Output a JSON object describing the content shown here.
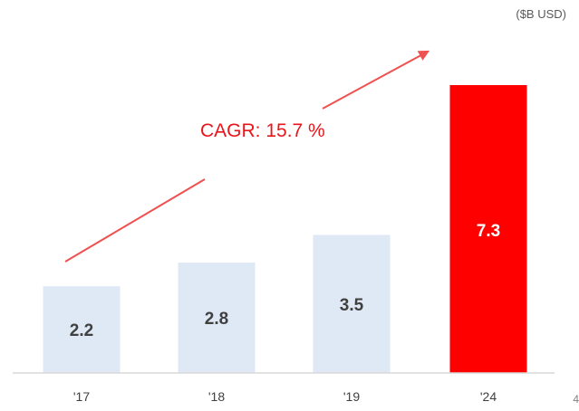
{
  "chart_data": {
    "type": "bar",
    "title": "",
    "unit_label": "($B USD)",
    "categories": [
      "'17",
      "'18",
      "'19",
      "'24"
    ],
    "values": [
      2.2,
      2.8,
      3.5,
      7.3
    ],
    "value_labels": [
      "2.2",
      "2.8",
      "3.5",
      "7.3"
    ],
    "bar_colors": [
      "#dfe9f5",
      "#dfe9f5",
      "#dfe9f5",
      "#ff0000"
    ],
    "label_colors": [
      "#404040",
      "#404040",
      "#404040",
      "#ffffff"
    ],
    "annotation": "CAGR: 15.7 %",
    "annotation_color": "#e8151b",
    "arrow_color": "#f05050",
    "ylim": [
      0,
      7.3
    ],
    "xlabel": "",
    "ylabel": "",
    "grid": false,
    "legend": "none"
  },
  "page": {
    "corner_mark": "4"
  }
}
